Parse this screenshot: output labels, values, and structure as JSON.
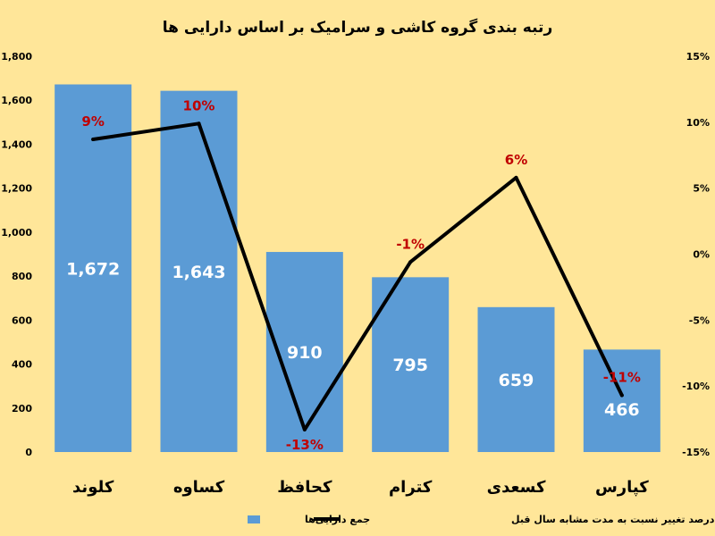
{
  "chart_data": {
    "type": "bar",
    "title": "رتبه بندی گروه کاشی و سرامیک بر اساس دارایی ها",
    "categories": [
      "کلوند",
      "کساوه",
      "کحافظ",
      "کترام",
      "کسعدی",
      "کپارس"
    ],
    "series": [
      {
        "name": "جمع دارایی‌ها",
        "type": "bar",
        "axis": "left",
        "color": "#5B9BD5",
        "values": [
          1672,
          1643,
          910,
          795,
          659,
          466
        ],
        "labels": [
          "1,672",
          "1,643",
          "910",
          "795",
          "659",
          "466"
        ]
      },
      {
        "name": "درصد تغییر نسبت به مدت مشابه سال قبل",
        "type": "line",
        "axis": "right",
        "color": "#000000",
        "values": [
          8.7,
          9.9,
          -13.3,
          -0.6,
          5.8,
          -10.7
        ],
        "labels": [
          "9%",
          "10%",
          "-13%",
          "-1%",
          "6%",
          "-11%"
        ]
      }
    ],
    "y_left": {
      "range": [
        0,
        1800
      ],
      "ticks": [
        0,
        200,
        400,
        600,
        800,
        1000,
        1200,
        1400,
        1600,
        1800
      ],
      "tick_labels": [
        "0",
        "200",
        "400",
        "600",
        "800",
        "1,000",
        "1,200",
        "1,400",
        "1,600",
        "1,800"
      ]
    },
    "y_right": {
      "range": [
        -15,
        15
      ],
      "ticks": [
        -15,
        -10,
        -5,
        0,
        5,
        10,
        15
      ],
      "tick_labels": [
        "-15%",
        "-10%",
        "-5%",
        "0%",
        "5%",
        "10%",
        "15%"
      ]
    },
    "grid": false,
    "legend_position": "bottom",
    "colors": {
      "background": "#FFE699",
      "line_label": "#C00000",
      "bar_label": "#FFFFFF"
    }
  }
}
